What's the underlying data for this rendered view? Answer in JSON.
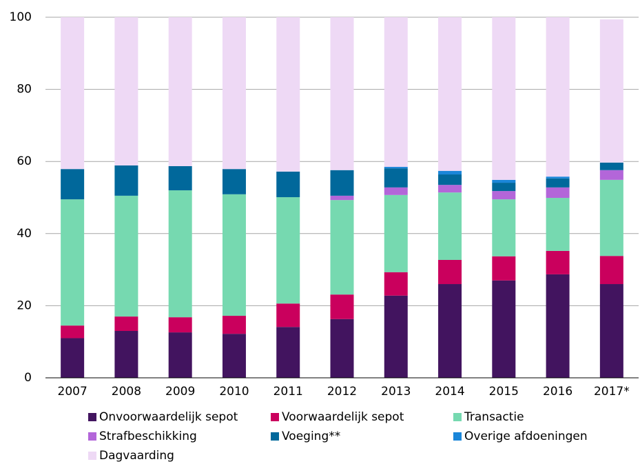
{
  "chart_data": {
    "type": "stacked_bar",
    "categories": [
      "2007",
      "2008",
      "2009",
      "2010",
      "2011",
      "2012",
      "2013",
      "2014",
      "2015",
      "2016",
      "2017*"
    ],
    "series": [
      {
        "name": "Onvoorwaardelijk sepot",
        "color": "#42145f",
        "values": [
          11,
          13,
          12.6,
          12.2,
          14.1,
          16.3,
          22.8,
          26,
          27,
          28.7,
          26
        ]
      },
      {
        "name": "Voorwaardelijk sepot",
        "color": "#ca005d",
        "values": [
          3.5,
          4,
          4.2,
          5,
          6.5,
          6.8,
          6.5,
          6.7,
          6.7,
          6.5,
          7.8
        ]
      },
      {
        "name": "Transactie",
        "color": "#76d9b0",
        "values": [
          35,
          33.5,
          35.2,
          33.7,
          29.5,
          26.2,
          21.4,
          18.7,
          15.8,
          14.7,
          21.1
        ]
      },
      {
        "name": "Strafbeschikking",
        "color": "#b366d9",
        "values": [
          0,
          0,
          0,
          0,
          0,
          1.2,
          2.1,
          2.1,
          2.3,
          2.9,
          2.7
        ]
      },
      {
        "name": "Voeging**",
        "color": "#01689b",
        "values": [
          8.4,
          8.4,
          6.7,
          7,
          7.1,
          7.1,
          5.3,
          2.9,
          2.3,
          2.5,
          2.1
        ]
      },
      {
        "name": "Overige afdoeningen",
        "color": "#1a86d9",
        "values": [
          0,
          0,
          0,
          0,
          0,
          0,
          0.4,
          1,
          0.8,
          0.5,
          0
        ]
      },
      {
        "name": "Dagvaarding",
        "color": "#eed9f5",
        "values": [
          42.1,
          41.1,
          41.3,
          42.1,
          42.8,
          42.4,
          41.5,
          42.6,
          45.1,
          44.2,
          39.7
        ]
      }
    ],
    "ylim": [
      0,
      100
    ],
    "yticks": [
      0,
      20,
      40,
      60,
      80,
      100
    ],
    "grid": true
  }
}
